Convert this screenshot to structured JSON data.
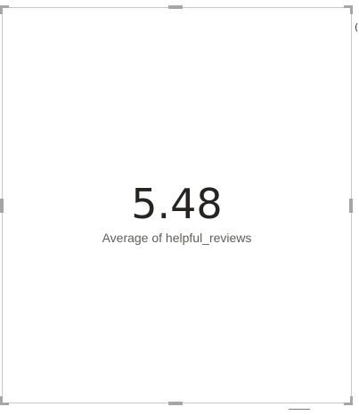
{
  "card": {
    "value": "5.48",
    "label": "Average of helpful_reviews"
  },
  "frame": {
    "edge_glyph": "(",
    "handle_color": "#a6a6a6",
    "border_color": "#c8c8c8"
  }
}
